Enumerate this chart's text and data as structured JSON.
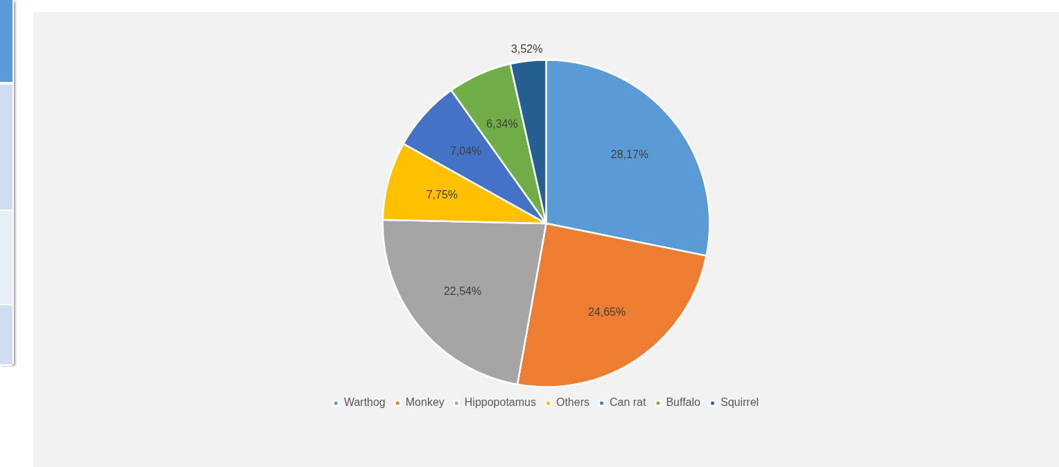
{
  "chart_data": {
    "type": "pie",
    "categories": [
      "Warthog",
      "Monkey",
      "Hippopotamus",
      "Others",
      "Can rat",
      "Buffalo",
      "Squirrel"
    ],
    "values": [
      28.17,
      24.65,
      22.54,
      7.75,
      7.04,
      6.34,
      3.52
    ],
    "colors": [
      "#5b9bd5",
      "#ed7d31",
      "#a5a5a5",
      "#ffc000",
      "#4472c4",
      "#70ad47",
      "#255e91"
    ],
    "value_labels": [
      "28,17%",
      "24,65%",
      "22,54%",
      "7,75%",
      "7,04%",
      "6,34%",
      "3,52%"
    ],
    "legend": "bottom"
  }
}
